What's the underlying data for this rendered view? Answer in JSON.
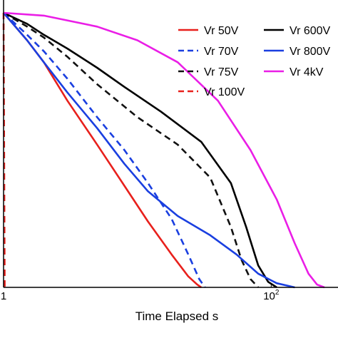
{
  "chart_data": {
    "type": "line",
    "xlabel": "Time Elapsed s",
    "ylabel": "",
    "xscale": "log",
    "xlim": [
      1,
      250
    ],
    "ylim": [
      0,
      1
    ],
    "x_tick_labels": [
      {
        "value": 1,
        "base": "1",
        "exp": ""
      },
      {
        "value": 100,
        "base": "10",
        "exp": "2"
      }
    ],
    "grid": false,
    "legend_position": "top-right",
    "series": [
      {
        "name": "Vr 50V",
        "color": "#e8201c",
        "dash": "solid",
        "points": [
          [
            1,
            1.0
          ],
          [
            1.5,
            0.9
          ],
          [
            2,
            0.82
          ],
          [
            3,
            0.68
          ],
          [
            5,
            0.52
          ],
          [
            8,
            0.37
          ],
          [
            12,
            0.24
          ],
          [
            18,
            0.12
          ],
          [
            24,
            0.04
          ],
          [
            28,
            0.01
          ],
          [
            30,
            0.0
          ]
        ]
      },
      {
        "name": "Vr 70V",
        "color": "#1a3fe0",
        "dash": "dashed",
        "points": [
          [
            1,
            1.0
          ],
          [
            1.5,
            0.92
          ],
          [
            2,
            0.86
          ],
          [
            3,
            0.76
          ],
          [
            5,
            0.62
          ],
          [
            8,
            0.5
          ],
          [
            12,
            0.38
          ],
          [
            18,
            0.25
          ],
          [
            24,
            0.12
          ],
          [
            29,
            0.03
          ],
          [
            32,
            0.0
          ]
        ]
      },
      {
        "name": "Vr 75V",
        "color": "#111111",
        "dash": "dashed",
        "points": [
          [
            1,
            1.0
          ],
          [
            1.5,
            0.95
          ],
          [
            2,
            0.91
          ],
          [
            3,
            0.84
          ],
          [
            5,
            0.74
          ],
          [
            10,
            0.62
          ],
          [
            20,
            0.52
          ],
          [
            35,
            0.4
          ],
          [
            50,
            0.22
          ],
          [
            60,
            0.1
          ],
          [
            70,
            0.03
          ],
          [
            80,
            0.0
          ]
        ]
      },
      {
        "name": "Vr 100V",
        "color": "#e8201c",
        "dash": "dashed",
        "points": [
          [
            1.0,
            1.0
          ],
          [
            1.02,
            0.0
          ]
        ]
      },
      {
        "name": "Vr 600V",
        "color": "#000000",
        "dash": "solid",
        "points": [
          [
            1,
            1.0
          ],
          [
            1.5,
            0.96
          ],
          [
            2,
            0.92
          ],
          [
            3,
            0.87
          ],
          [
            5,
            0.8
          ],
          [
            8,
            0.73
          ],
          [
            15,
            0.64
          ],
          [
            30,
            0.53
          ],
          [
            50,
            0.38
          ],
          [
            65,
            0.22
          ],
          [
            80,
            0.08
          ],
          [
            95,
            0.02
          ],
          [
            110,
            0.0
          ]
        ]
      },
      {
        "name": "Vr 800V",
        "color": "#1a3fe0",
        "dash": "solid",
        "points": [
          [
            1,
            1.0
          ],
          [
            1.5,
            0.9
          ],
          [
            2,
            0.82
          ],
          [
            3,
            0.71
          ],
          [
            5,
            0.58
          ],
          [
            8,
            0.45
          ],
          [
            12,
            0.35
          ],
          [
            20,
            0.26
          ],
          [
            35,
            0.19
          ],
          [
            55,
            0.12
          ],
          [
            80,
            0.05
          ],
          [
            110,
            0.015
          ],
          [
            150,
            0.0
          ]
        ]
      },
      {
        "name": "Vr 4kV",
        "color": "#ea1ee6",
        "dash": "solid",
        "points": [
          [
            1,
            1.0
          ],
          [
            2,
            0.99
          ],
          [
            5,
            0.95
          ],
          [
            10,
            0.9
          ],
          [
            20,
            0.82
          ],
          [
            40,
            0.68
          ],
          [
            70,
            0.5
          ],
          [
            110,
            0.32
          ],
          [
            150,
            0.16
          ],
          [
            190,
            0.05
          ],
          [
            220,
            0.01
          ],
          [
            250,
            0.0
          ]
        ]
      }
    ]
  }
}
